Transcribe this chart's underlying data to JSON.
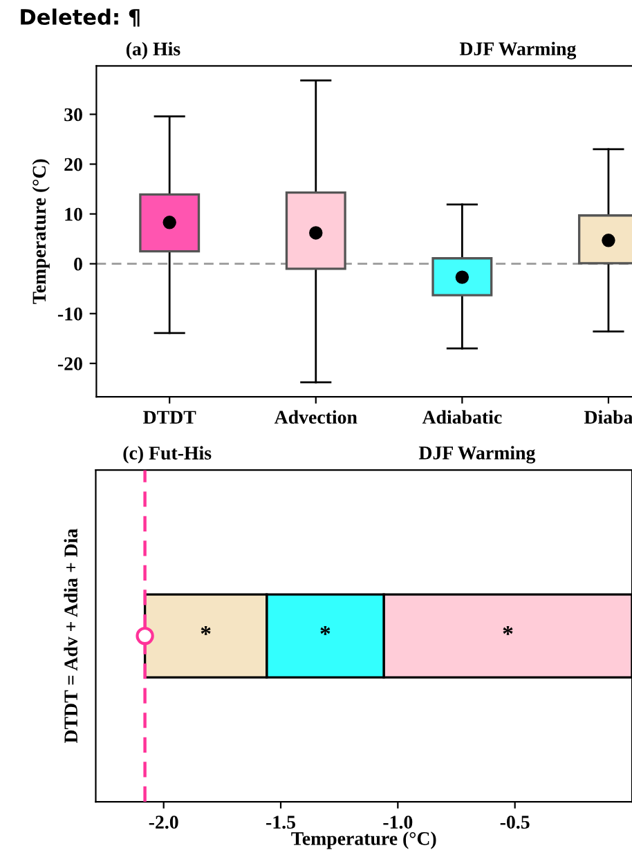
{
  "chart_data": [
    {
      "type": "box",
      "title": "(a) His",
      "subtitle": "DJF Warming",
      "ylabel": "Temperature (°C)",
      "annotations": [
        "Deleted: ¶"
      ],
      "categories": [
        "DTDT",
        "Advection",
        "Adiabatic",
        "Diaba"
      ],
      "colors": [
        "#ff55b0",
        "#ffccd8",
        "#44fffe",
        "#f5e4c3"
      ],
      "boxes": [
        {
          "low": -13.9,
          "q1": 2.5,
          "q3": 13.9,
          "high": 29.6,
          "mean": 8.3
        },
        {
          "low": -23.8,
          "q1": -1.0,
          "q3": 14.3,
          "high": 36.8,
          "mean": 6.2
        },
        {
          "low": -17.0,
          "q1": -6.3,
          "q3": 1.1,
          "high": 11.9,
          "mean": -2.7
        },
        {
          "low": -13.6,
          "q1": 0.1,
          "q3": 9.7,
          "high": 23.0,
          "mean": 4.7
        }
      ],
      "ylim": [
        -26.7,
        39.7
      ],
      "yticks": [
        {
          "value": -20,
          "label": "-20"
        },
        {
          "value": -10,
          "label": "-10"
        },
        0,
        10,
        20,
        30
      ],
      "ref_lines": [
        {
          "axis": "y",
          "value": 0,
          "color": "#999999",
          "line_style": "dashed"
        }
      ],
      "grid": false
    },
    {
      "type": "bar",
      "orientation": "horizontal",
      "stacked": true,
      "title": "(c) Fut-His",
      "subtitle": "DJF Warming",
      "xlabel": "Temperature (°C)",
      "ylabel": "DTDT = Adv + Adia + Dia",
      "categories": [
        null
      ],
      "series": [
        {
          "color": "#ffccd8",
          "values": [
            -1.06
          ]
        },
        {
          "color": "#33fffe",
          "values": [
            -0.5
          ]
        },
        {
          "color": "#f5e4c3",
          "values": [
            -0.52
          ]
        },
        {
          "type": "scatter",
          "color": "#ff3399",
          "values": [
            -2.08
          ],
          "marker": "circle"
        }
      ],
      "annotations": [
        "*",
        "*",
        "*"
      ],
      "xlim": [
        -2.29,
        0.0
      ],
      "xticks": [
        {
          "value": -2.0,
          "label": "-2.0"
        },
        {
          "value": -1.5,
          "label": "-1.5"
        },
        {
          "value": -1.0,
          "label": "-1.0"
        },
        {
          "value": -0.5,
          "label": "-0.5"
        }
      ],
      "ref_lines": [
        {
          "axis": "x",
          "value": -2.08,
          "color": "#ff3399",
          "line_style": "dashed"
        }
      ],
      "grid": false
    }
  ]
}
